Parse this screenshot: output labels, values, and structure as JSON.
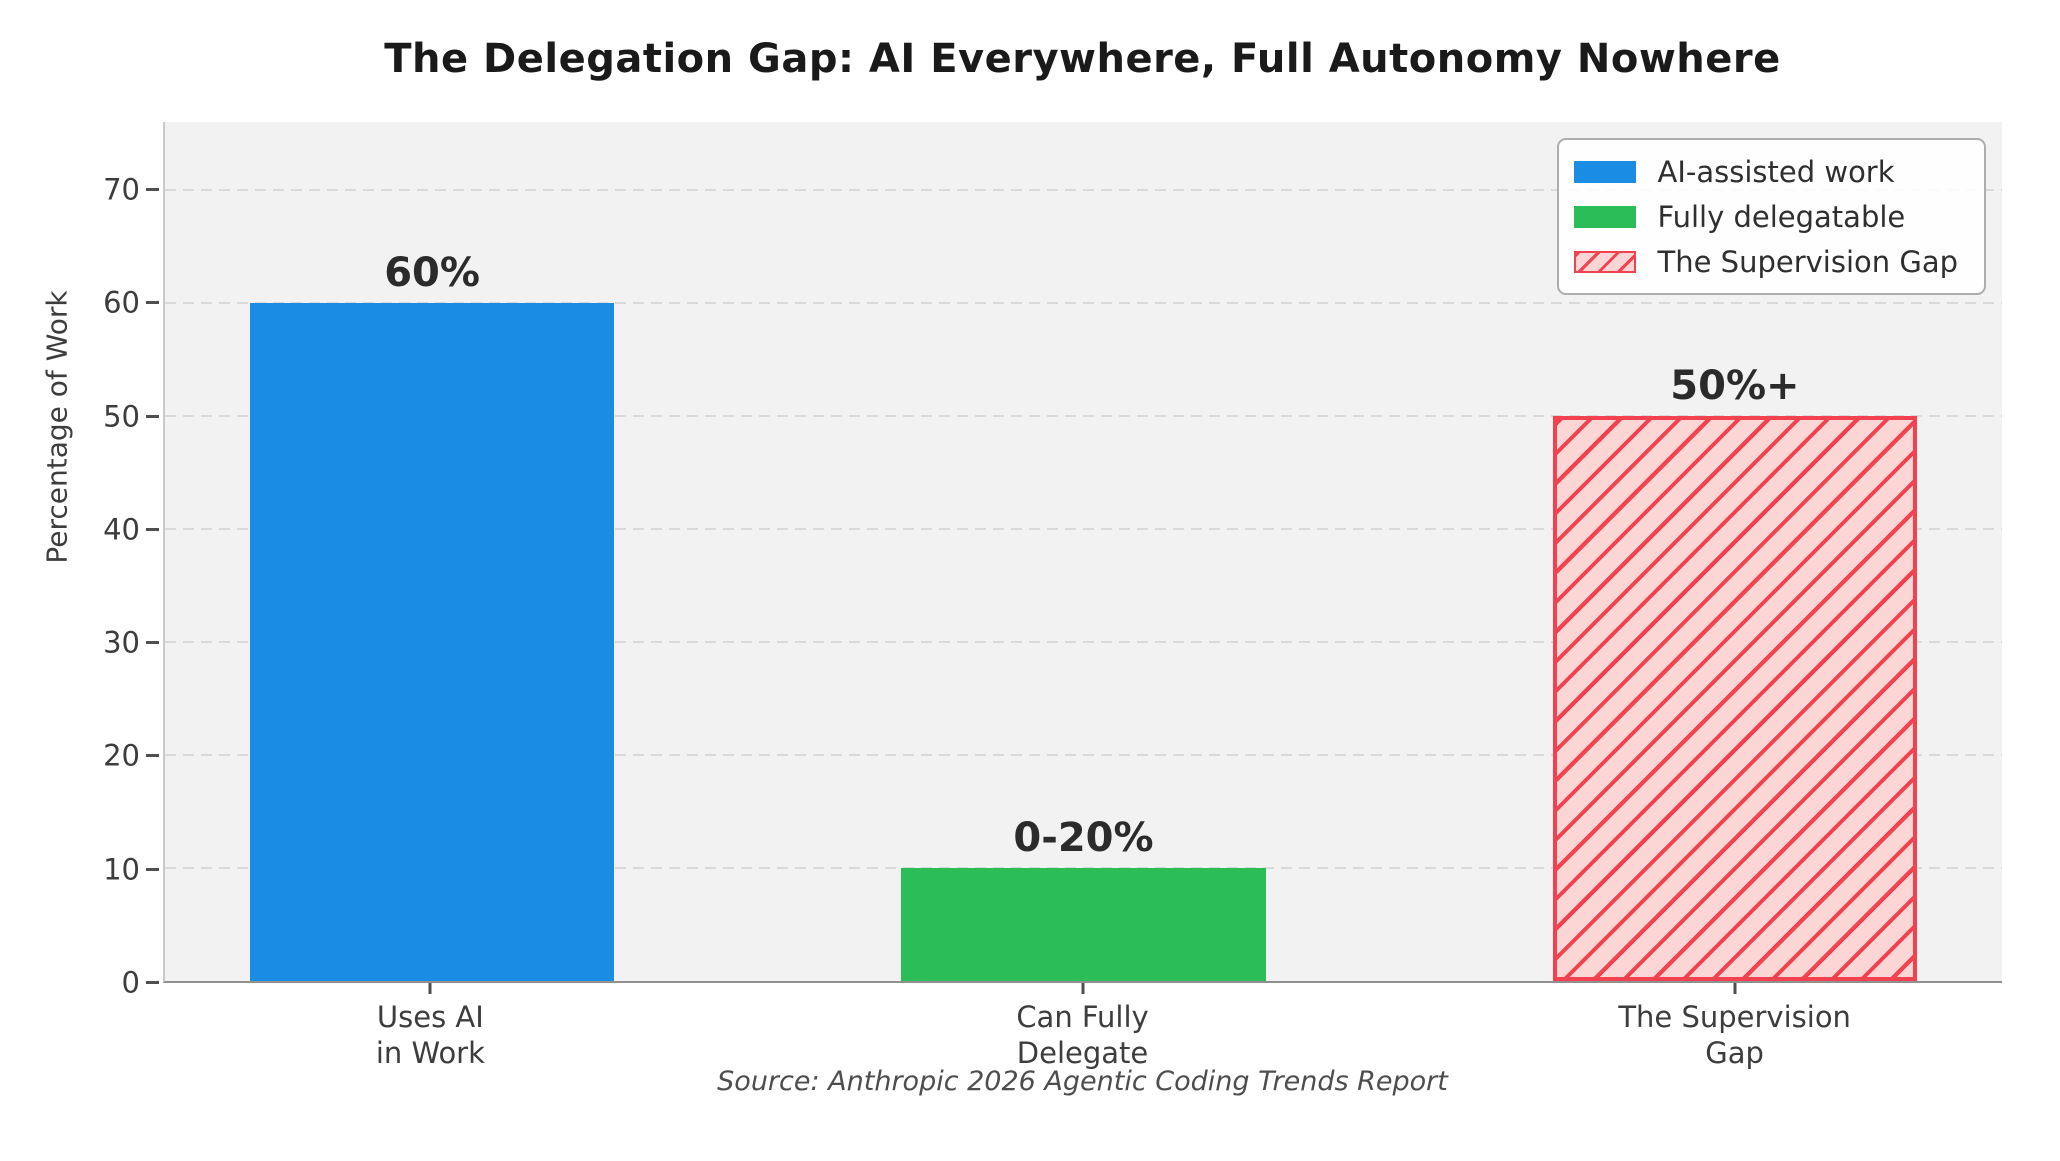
{
  "title": "The Delegation Gap: AI Everywhere, Full Autonomy Nowhere",
  "chart_data": {
    "type": "bar",
    "title": "The Delegation Gap: AI Everywhere, Full Autonomy Nowhere",
    "xlabel": "",
    "ylabel": "Percentage of Work",
    "ylim": [
      0,
      76
    ],
    "xlim": [
      -0.41,
      2.41
    ],
    "yticks": [
      0,
      10,
      20,
      30,
      40,
      50,
      60,
      70
    ],
    "grid": "dashed-horizontal",
    "grid_color": "#d9d9d9",
    "plot_background": "#f2f2f2",
    "figure_background": "#ffffff",
    "bar_width": 0.56,
    "categories": [
      "Uses AI in Work",
      "Can Fully Delegate",
      "The Supervision Gap"
    ],
    "bars": [
      {
        "key": "uses-ai-in-work",
        "x": 0,
        "value": 60,
        "display_label": "60%",
        "category_lines": [
          "Uses AI",
          "in Work"
        ],
        "series": 0
      },
      {
        "key": "can-fully-delegate",
        "x": 1,
        "value": 10,
        "display_label": "0-20%",
        "category_lines": [
          "Can Fully",
          "Delegate"
        ],
        "series": 1
      },
      {
        "key": "the-supervision-gap",
        "x": 2,
        "value": 50,
        "display_label": "50%+",
        "category_lines": [
          "The Supervision",
          "Gap"
        ],
        "series": 2
      }
    ],
    "series": [
      {
        "name": "AI-assisted work",
        "color": "#1b8ce4"
      },
      {
        "name": "Fully delegatable",
        "color": "#2bbd58"
      },
      {
        "name": "The Supervision Gap",
        "color": "#fcd5d5",
        "hatch": "diagonal-forward",
        "hatch_color": "#f2414f",
        "edge_color": "#f2414f"
      }
    ],
    "legend_position": "upper-right",
    "source": "Source: Anthropic 2026 Agentic Coding Trends Report"
  }
}
